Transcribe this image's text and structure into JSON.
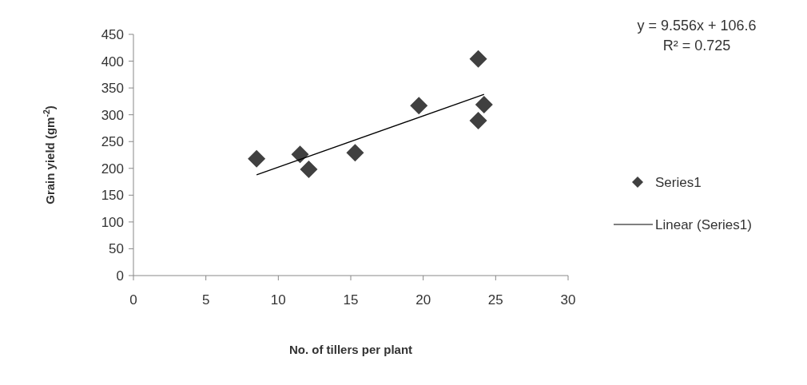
{
  "chart_data": {
    "type": "scatter",
    "xlabel": "No. of tillers per plant",
    "ylabel": "Grain yield (gm$^{-2}$)",
    "xlim": [
      0,
      30
    ],
    "xticks": [
      0,
      5,
      10,
      15,
      20,
      25,
      30
    ],
    "ylim": [
      0,
      450
    ],
    "yticks": [
      0,
      50,
      100,
      150,
      200,
      250,
      300,
      350,
      400,
      450
    ],
    "grid": false,
    "legend": "right",
    "marker": "diamond",
    "annotations": [
      "y = 9.556x + 106.6",
      "R² = 0.725"
    ],
    "series": [
      {
        "name": "Series1",
        "color": "#404040",
        "x": [
          8.5,
          11.5,
          12.1,
          15.3,
          19.7,
          23.8,
          24.2,
          23.8
        ],
        "values": [
          218,
          226,
          198,
          229,
          317,
          404,
          319,
          289
        ]
      },
      {
        "name": "Linear (Series1)",
        "type": "line",
        "marker": "none",
        "color": "#000000",
        "x": [
          8.5,
          24.2
        ],
        "values": [
          188,
          338
        ]
      }
    ]
  }
}
